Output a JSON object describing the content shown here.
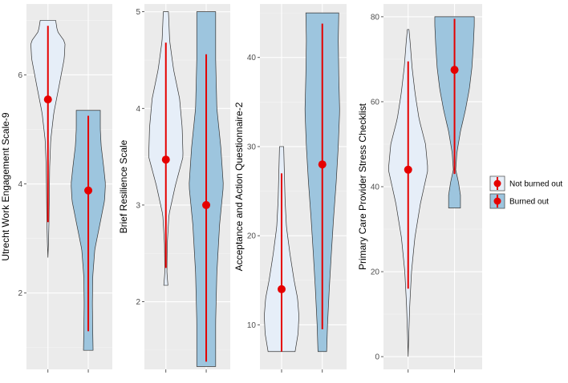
{
  "chart_data": {
    "type": "violin",
    "colors": {
      "not_burned_out": "#e6eef8",
      "burned_out": "#9dc5de",
      "point": "#e50000"
    },
    "legend": {
      "placement": "right",
      "entries": [
        "Not burned out",
        "Burned out"
      ]
    },
    "panels": [
      {
        "ylabel": "Utrecht Work Engagement Scale-9",
        "ylim": [
          0.6,
          7.3
        ],
        "yticks": [
          2,
          4,
          6
        ],
        "groups": [
          {
            "name": "Not burned out",
            "mean": 5.55,
            "err_low": 3.3,
            "err_high": 6.9,
            "min": 2.65,
            "max": 7.0,
            "profile": [
              [
                2.65,
                0.0
              ],
              [
                2.9,
                0.03
              ],
              [
                3.3,
                0.06
              ],
              [
                3.8,
                0.08
              ],
              [
                4.3,
                0.1
              ],
              [
                4.8,
                0.16
              ],
              [
                5.3,
                0.34
              ],
              [
                5.8,
                0.65
              ],
              [
                6.3,
                0.95
              ],
              [
                6.6,
                1.0
              ],
              [
                6.8,
                0.55
              ],
              [
                7.0,
                0.45
              ]
            ]
          },
          {
            "name": "Burned out",
            "mean": 3.88,
            "err_low": 1.3,
            "err_high": 5.25,
            "min": 0.95,
            "max": 5.35,
            "profile": [
              [
                0.95,
                0.28
              ],
              [
                1.3,
                0.26
              ],
              [
                1.8,
                0.24
              ],
              [
                2.3,
                0.26
              ],
              [
                2.8,
                0.38
              ],
              [
                3.3,
                0.7
              ],
              [
                3.7,
                0.95
              ],
              [
                4.0,
                1.0
              ],
              [
                4.3,
                0.9
              ],
              [
                4.7,
                0.75
              ],
              [
                5.0,
                0.7
              ],
              [
                5.35,
                0.7
              ]
            ]
          }
        ]
      },
      {
        "ylabel": "Brief Resilience Scale",
        "ylim": [
          1.3,
          5.08
        ],
        "yticks": [
          2,
          3,
          4,
          5
        ],
        "groups": [
          {
            "name": "Not burned out",
            "mean": 3.47,
            "err_low": 2.35,
            "err_high": 4.68,
            "min": 2.17,
            "max": 5.0,
            "profile": [
              [
                2.17,
                0.12
              ],
              [
                2.3,
                0.06
              ],
              [
                2.6,
                0.08
              ],
              [
                2.9,
                0.18
              ],
              [
                3.2,
                0.55
              ],
              [
                3.5,
                1.0
              ],
              [
                3.8,
                0.95
              ],
              [
                4.1,
                0.8
              ],
              [
                4.4,
                0.45
              ],
              [
                4.7,
                0.22
              ],
              [
                5.0,
                0.15
              ]
            ]
          },
          {
            "name": "Burned out",
            "mean": 3.0,
            "err_low": 1.38,
            "err_high": 4.56,
            "min": 1.33,
            "max": 5.0,
            "profile": [
              [
                1.33,
                0.55
              ],
              [
                1.8,
                0.55
              ],
              [
                2.3,
                0.62
              ],
              [
                2.8,
                0.78
              ],
              [
                3.2,
                1.0
              ],
              [
                3.6,
                0.85
              ],
              [
                4.0,
                0.62
              ],
              [
                4.5,
                0.55
              ],
              [
                5.0,
                0.55
              ]
            ]
          }
        ]
      },
      {
        "ylabel": "Acceptance and Action Questionnaire-2",
        "ylim": [
          5,
          46
        ],
        "yticks": [
          10,
          20,
          30,
          40
        ],
        "groups": [
          {
            "name": "Not burned out",
            "mean": 14.0,
            "err_low": 7.0,
            "err_high": 27.0,
            "min": 7.0,
            "max": 30.0,
            "profile": [
              [
                7,
                0.78
              ],
              [
                9,
                0.95
              ],
              [
                11,
                1.0
              ],
              [
                13,
                0.92
              ],
              [
                15,
                0.72
              ],
              [
                18,
                0.48
              ],
              [
                21,
                0.28
              ],
              [
                24,
                0.2
              ],
              [
                27,
                0.16
              ],
              [
                30,
                0.12
              ]
            ]
          },
          {
            "name": "Burned out",
            "mean": 28.0,
            "err_low": 9.5,
            "err_high": 43.8,
            "min": 7.0,
            "max": 45.0,
            "profile": [
              [
                7,
                0.25
              ],
              [
                10,
                0.3
              ],
              [
                14,
                0.4
              ],
              [
                18,
                0.52
              ],
              [
                22,
                0.65
              ],
              [
                26,
                0.8
              ],
              [
                30,
                0.92
              ],
              [
                34,
                1.0
              ],
              [
                38,
                0.95
              ],
              [
                42,
                0.92
              ],
              [
                45,
                0.95
              ]
            ]
          }
        ]
      },
      {
        "ylabel": "Primary Care Provider Stress Checklist",
        "ylim": [
          -3,
          83
        ],
        "yticks": [
          0,
          20,
          40,
          60,
          80
        ],
        "groups": [
          {
            "name": "Not burned out",
            "mean": 44.0,
            "err_low": 16.0,
            "err_high": 69.5,
            "min": 0.0,
            "max": 77.0,
            "profile": [
              [
                0,
                0.0
              ],
              [
                5,
                0.03
              ],
              [
                12,
                0.08
              ],
              [
                20,
                0.17
              ],
              [
                28,
                0.34
              ],
              [
                36,
                0.62
              ],
              [
                44,
                1.0
              ],
              [
                50,
                0.88
              ],
              [
                56,
                0.55
              ],
              [
                62,
                0.35
              ],
              [
                68,
                0.2
              ],
              [
                74,
                0.1
              ],
              [
                77,
                0.04
              ]
            ]
          },
          {
            "name": "Burned out",
            "mean": 67.5,
            "err_low": 43.0,
            "err_high": 79.5,
            "min": 35.0,
            "max": 80.0,
            "profile": [
              [
                35,
                0.3
              ],
              [
                38,
                0.3
              ],
              [
                41,
                0.2
              ],
              [
                44,
                0.06
              ],
              [
                48,
                0.12
              ],
              [
                53,
                0.3
              ],
              [
                58,
                0.55
              ],
              [
                63,
                0.75
              ],
              [
                68,
                0.88
              ],
              [
                73,
                0.95
              ],
              [
                78,
                1.0
              ],
              [
                80,
                1.0
              ]
            ]
          }
        ]
      }
    ]
  }
}
